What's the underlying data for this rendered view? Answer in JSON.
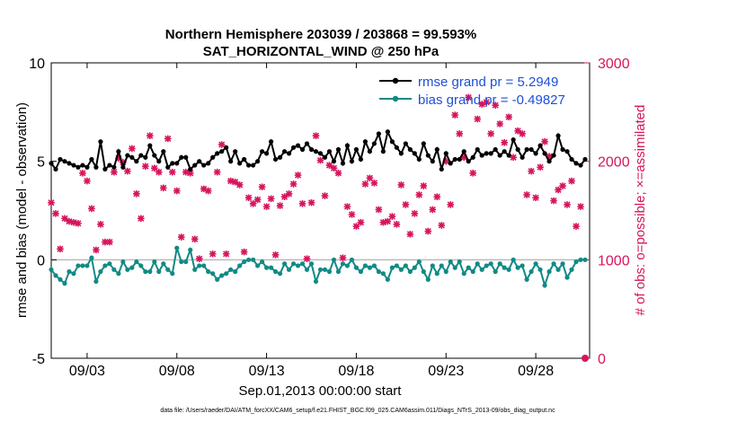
{
  "chart_data": {
    "type": "line",
    "title": "Northern Hemisphere 203039 / 203868 = 99.593%",
    "subtitle": "SAT_HORIZONTAL_WIND @ 250 hPa",
    "xlabel": "Sep.01,2013 00:00:00 start",
    "ylabel": "rmse and bias (model - observation)",
    "y2label": "# of obs: o=possible; ×=assimilated",
    "footnote": "data file: /Users/raeder/DAI/ATM_forcXX/CAM6_setup/f.e21.FHIST_BGC.f09_025.CAM6assim.011/Diags_NTrS_2013-09/obs_diag_output.nc",
    "xlim": [
      1,
      31
    ],
    "ylim": [
      -5,
      10
    ],
    "y2lim": [
      0,
      3000
    ],
    "x_ticks": [
      3,
      8,
      13,
      18,
      23,
      28
    ],
    "x_tick_labels": [
      "09/03",
      "09/08",
      "09/13",
      "09/18",
      "09/23",
      "09/28"
    ],
    "y_ticks": [
      -5,
      0,
      5,
      10
    ],
    "y_tick_labels": [
      "-5",
      "0",
      "5",
      "10"
    ],
    "y2_ticks": [
      0,
      1000,
      2000,
      3000
    ],
    "y2_tick_labels": [
      "0",
      "1000",
      "2000",
      "3000"
    ],
    "legend_position": "top-right",
    "grid": false,
    "zero_line": true,
    "x": [
      1.0,
      1.25,
      1.5,
      1.75,
      2.0,
      2.25,
      2.5,
      2.75,
      3.0,
      3.25,
      3.5,
      3.75,
      4.0,
      4.25,
      4.5,
      4.75,
      5.0,
      5.25,
      5.5,
      5.75,
      6.0,
      6.25,
      6.5,
      6.75,
      7.0,
      7.25,
      7.5,
      7.75,
      8.0,
      8.25,
      8.5,
      8.75,
      9.0,
      9.25,
      9.5,
      9.75,
      10.0,
      10.25,
      10.5,
      10.75,
      11.0,
      11.25,
      11.5,
      11.75,
      12.0,
      12.25,
      12.5,
      12.75,
      13.0,
      13.25,
      13.5,
      13.75,
      14.0,
      14.25,
      14.5,
      14.75,
      15.0,
      15.25,
      15.5,
      15.75,
      16.0,
      16.25,
      16.5,
      16.75,
      17.0,
      17.25,
      17.5,
      17.75,
      18.0,
      18.25,
      18.5,
      18.75,
      19.0,
      19.25,
      19.5,
      19.75,
      20.0,
      20.25,
      20.5,
      20.75,
      21.0,
      21.25,
      21.5,
      21.75,
      22.0,
      22.25,
      22.5,
      22.75,
      23.0,
      23.25,
      23.5,
      23.75,
      24.0,
      24.25,
      24.5,
      24.75,
      25.0,
      25.25,
      25.5,
      25.75,
      26.0,
      26.25,
      26.5,
      26.75,
      27.0,
      27.25,
      27.5,
      27.75,
      28.0,
      28.25,
      28.5,
      28.75,
      29.0,
      29.25,
      29.5,
      29.75,
      30.0,
      30.25,
      30.5,
      30.75
    ],
    "series": [
      {
        "name": "rmse grand pr = 5.2949",
        "color": "#000000",
        "axis": "left",
        "values": [
          4.9,
          4.6,
          5.1,
          5.0,
          4.9,
          4.8,
          4.7,
          4.8,
          4.7,
          5.1,
          4.7,
          6.0,
          4.6,
          4.8,
          4.7,
          5.5,
          4.7,
          5.3,
          5.2,
          5.0,
          5.3,
          5.2,
          5.8,
          5.3,
          5.0,
          5.5,
          4.7,
          4.9,
          4.9,
          5.2,
          5.2,
          4.6,
          4.8,
          5.0,
          4.8,
          4.9,
          5.2,
          5.4,
          5.5,
          5.7,
          5.0,
          5.5,
          4.9,
          5.1,
          4.8,
          4.8,
          5.0,
          5.5,
          5.4,
          6.0,
          5.1,
          5.2,
          5.5,
          5.4,
          5.7,
          5.8,
          5.6,
          5.9,
          5.6,
          5.5,
          5.4,
          5.2,
          5.5,
          5.0,
          5.6,
          4.9,
          5.8,
          5.0,
          5.6,
          5.1,
          6.0,
          5.5,
          5.9,
          6.4,
          5.5,
          6.5,
          6.0,
          5.7,
          5.4,
          5.9,
          5.6,
          5.4,
          5.1,
          5.9,
          5.3,
          5.0,
          5.6,
          4.6,
          5.4,
          4.9,
          5.1,
          5.1,
          5.5,
          5.0,
          5.2,
          5.6,
          5.3,
          5.4,
          5.4,
          5.6,
          5.3,
          5.5,
          5.3,
          6.1,
          5.6,
          5.2,
          5.6,
          5.6,
          5.4,
          5.8,
          5.4,
          5.0,
          5.3,
          6.3,
          5.6,
          5.5,
          5.1,
          4.9,
          4.8,
          5.1
        ]
      },
      {
        "name": "bias grand pr = -0.49827",
        "color": "#118a85",
        "axis": "left",
        "values": [
          -0.5,
          -0.8,
          -1.0,
          -1.2,
          -0.6,
          -0.7,
          -0.3,
          -0.3,
          -0.3,
          0.1,
          -1.1,
          -0.6,
          -0.3,
          -0.2,
          -0.5,
          -0.7,
          -0.1,
          -0.5,
          -0.4,
          -0.1,
          -0.3,
          -0.6,
          -0.6,
          -0.1,
          -0.6,
          -0.2,
          -0.5,
          -0.7,
          0.6,
          -0.1,
          -0.1,
          0.5,
          -0.5,
          -0.3,
          -0.3,
          -0.6,
          -0.7,
          -1.0,
          -0.8,
          -0.7,
          -0.5,
          -0.6,
          -0.3,
          -0.1,
          0.0,
          0.0,
          -0.3,
          -0.1,
          -0.4,
          -0.4,
          -0.6,
          -0.7,
          -0.2,
          -0.5,
          -0.2,
          -0.3,
          -0.2,
          -0.5,
          -0.2,
          -1.1,
          -0.5,
          -0.5,
          -0.6,
          0.0,
          -0.6,
          -0.2,
          -0.3,
          0.0,
          -0.4,
          -0.6,
          -0.3,
          -0.4,
          -0.3,
          -0.6,
          -0.7,
          -1.0,
          -0.4,
          -0.3,
          -0.5,
          -0.3,
          -0.6,
          -0.4,
          -0.1,
          -0.6,
          -1.0,
          -0.3,
          -0.7,
          -0.3,
          -0.6,
          -0.1,
          -0.4,
          -0.1,
          -0.7,
          -0.4,
          -0.6,
          -0.2,
          -0.5,
          -0.3,
          -0.2,
          -0.6,
          -0.2,
          -0.4,
          -0.5,
          0.0,
          -0.4,
          -0.3,
          -1.0,
          -0.6,
          -0.2,
          -0.5,
          -1.3,
          -0.6,
          -0.2,
          -0.5,
          -0.2,
          -0.9,
          -0.5,
          -0.1,
          0.0,
          0.0
        ]
      }
    ],
    "obs_series": {
      "name": "assimilated",
      "color": "#d6155d",
      "axis": "right",
      "values": [
        1580,
        1470,
        1110,
        1420,
        1390,
        1380,
        1370,
        1880,
        1800,
        1520,
        1100,
        1360,
        1180,
        1180,
        1890,
        2030,
        1990,
        1900,
        2130,
        1670,
        1420,
        1950,
        2260,
        1930,
        1890,
        1730,
        2230,
        1890,
        1700,
        1230,
        1890,
        1880,
        1210,
        1010,
        1720,
        1700,
        1060,
        1890,
        2170,
        1060,
        1800,
        1790,
        1760,
        1080,
        1630,
        1570,
        1610,
        1740,
        1540,
        1620,
        1050,
        1550,
        1640,
        1670,
        1770,
        1860,
        1570,
        1010,
        1580,
        2260,
        2010,
        1650,
        1960,
        1930,
        1880,
        1020,
        1540,
        1460,
        1340,
        1380,
        1770,
        1830,
        1780,
        1510,
        1380,
        1390,
        1440,
        1360,
        1760,
        1560,
        1260,
        1470,
        1660,
        1750,
        1290,
        1510,
        1640,
        1350,
        2000,
        1560,
        2470,
        2280,
        2040,
        2650,
        1880,
        2430,
        2580,
        2600,
        2280,
        2570,
        2380,
        2190,
        2450,
        2040,
        2310,
        2280,
        1660,
        1900,
        1630,
        1940,
        2200,
        2050,
        1600,
        1710,
        1750,
        1560,
        1800,
        1340,
        1540,
        0
      ]
    }
  }
}
